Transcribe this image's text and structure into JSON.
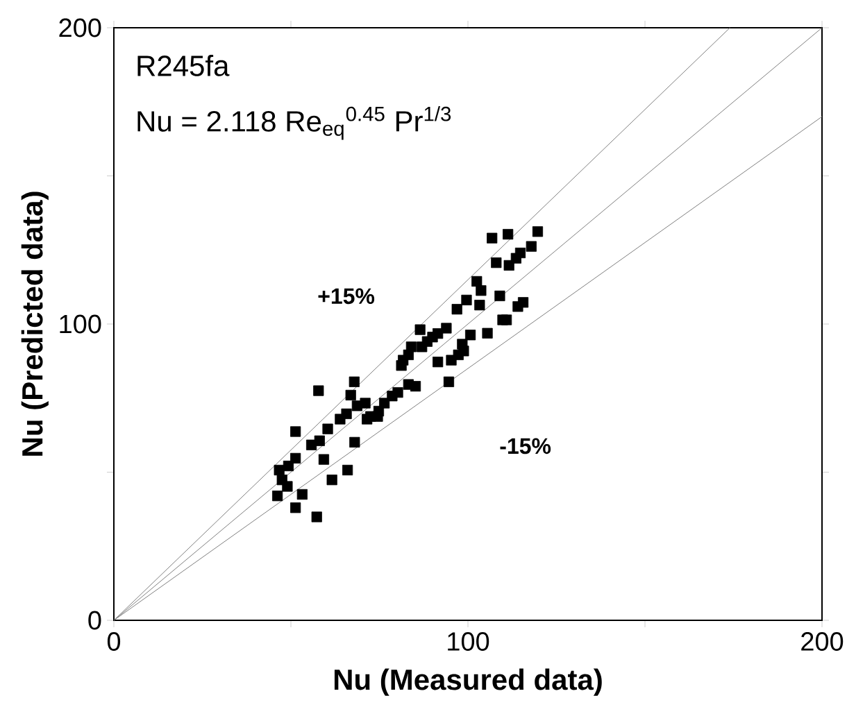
{
  "chart_data": {
    "type": "scatter",
    "xlabel": "Nu (Measured data)",
    "ylabel": "Nu (Predicted data)",
    "xlim": [
      0,
      200
    ],
    "ylim": [
      0,
      200
    ],
    "xticks": [
      0,
      {
        "value": 50,
        "label": null
      },
      100,
      {
        "value": 150,
        "label": null
      },
      200
    ],
    "yticks": [
      0,
      {
        "value": 50,
        "label": null
      },
      100,
      {
        "value": 150,
        "label": null
      },
      200
    ],
    "grid": false,
    "marker": "square",
    "annotations": [
      "R245fa",
      "Nu = 2.118 Re$_{eq}$$^{0.45}$ Pr$^{1/3}$",
      "**+15%**",
      "**-15%**"
    ],
    "series": [
      {
        "color": "#000000",
        "x": [
          106.8,
          111.3,
          119.7,
          108.0,
          111.6,
          113.6,
          114.8,
          117.9,
          102.5,
          103.7,
          103.3,
          109.0,
          99.6,
          96.9,
          105.5,
          109.8,
          110.9,
          114.1,
          115.6,
          100.7,
          98.4,
          98.8,
          97.3,
          95.3,
          91.5,
          94.6,
          93.9,
          91.5,
          90.0,
          88.5,
          87.0,
          86.5,
          84.0,
          83.2,
          81.7,
          81.2,
          83.2,
          85.2,
          80.2,
          78.6,
          76.4,
          74.8,
          74.5,
          72.5,
          71.5,
          71.0,
          68.7,
          66.9,
          67.9,
          65.7,
          63.9,
          60.4,
          58.1,
          55.8,
          51.3,
          57.8,
          68.0,
          59.3,
          51.3,
          49.3,
          46.7,
          47.5,
          49.0,
          46.2,
          53.2,
          51.3,
          57.3,
          61.6,
          66.0
        ],
        "values": [
          129.0,
          130.3,
          131.2,
          120.7,
          119.8,
          122.2,
          124.0,
          126.2,
          114.4,
          111.3,
          106.4,
          109.5,
          108.1,
          105.0,
          96.9,
          101.4,
          101.4,
          105.9,
          107.3,
          96.3,
          93.2,
          90.9,
          89.6,
          87.8,
          87.2,
          80.5,
          98.6,
          96.8,
          95.6,
          94.1,
          92.3,
          98.1,
          92.3,
          89.6,
          87.8,
          86.0,
          79.6,
          79.0,
          76.9,
          75.7,
          73.3,
          70.6,
          68.8,
          68.8,
          67.9,
          73.3,
          72.4,
          76.0,
          80.5,
          69.7,
          67.9,
          64.6,
          60.6,
          59.2,
          63.7,
          77.5,
          60.1,
          54.3,
          54.7,
          52.1,
          50.7,
          47.4,
          45.2,
          42.0,
          42.5,
          38.0,
          34.9,
          47.4,
          50.7
        ]
      },
      {
        "type": "line",
        "color": "#808080",
        "marker": "none",
        "x": [
          0,
          174
        ],
        "values": [
          0,
          200
        ]
      },
      {
        "type": "line",
        "color": "#808080",
        "marker": "none",
        "x": [
          0,
          200
        ],
        "values": [
          0,
          200
        ]
      },
      {
        "type": "line",
        "color": "#808080",
        "marker": "none",
        "x": [
          0,
          200
        ],
        "values": [
          0,
          170
        ]
      }
    ]
  }
}
